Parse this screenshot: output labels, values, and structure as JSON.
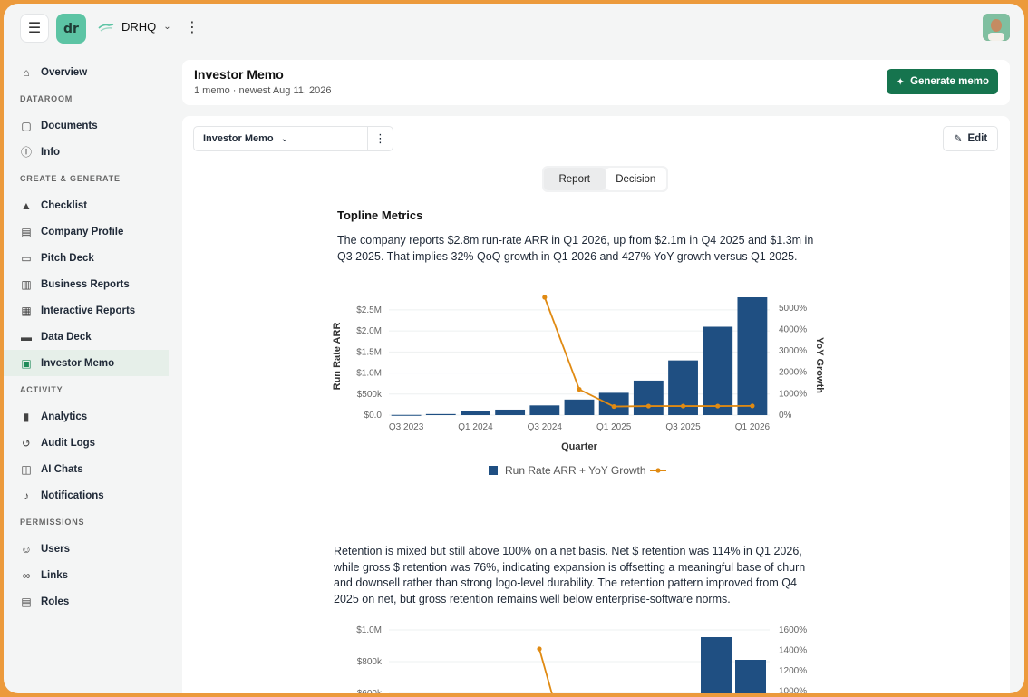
{
  "topbar": {
    "menu_icon": "hamburger-icon",
    "logo_text": "dr",
    "workspace_name": "DRHQ"
  },
  "sidebar": {
    "overview": "Overview",
    "sections": [
      {
        "title": "DATAROOM",
        "items": [
          {
            "label": "Documents",
            "icon": "document-icon"
          },
          {
            "label": "Info",
            "icon": "info-icon"
          }
        ]
      },
      {
        "title": "CREATE & GENERATE",
        "items": [
          {
            "label": "Checklist",
            "icon": "checklist-icon"
          },
          {
            "label": "Company Profile",
            "icon": "company-icon"
          },
          {
            "label": "Pitch Deck",
            "icon": "deck-icon"
          },
          {
            "label": "Business Reports",
            "icon": "report-icon"
          },
          {
            "label": "Interactive Reports",
            "icon": "table-icon"
          },
          {
            "label": "Data Deck",
            "icon": "data-icon"
          },
          {
            "label": "Investor Memo",
            "icon": "memo-icon"
          }
        ]
      },
      {
        "title": "ACTIVITY",
        "items": [
          {
            "label": "Analytics",
            "icon": "chart-icon"
          },
          {
            "label": "Audit Logs",
            "icon": "history-icon"
          },
          {
            "label": "AI Chats",
            "icon": "chat-icon"
          },
          {
            "label": "Notifications",
            "icon": "bell-icon"
          }
        ]
      },
      {
        "title": "PERMISSIONS",
        "items": [
          {
            "label": "Users",
            "icon": "users-icon"
          },
          {
            "label": "Links",
            "icon": "link-icon"
          },
          {
            "label": "Roles",
            "icon": "roles-icon"
          }
        ]
      }
    ]
  },
  "header": {
    "title": "Investor Memo",
    "subtitle": "1 memo · newest Aug 11, 2026",
    "generate_label": "Generate memo"
  },
  "toolbar": {
    "selected_doc": "Investor Memo",
    "edit_label": "Edit"
  },
  "tabs": {
    "report": "Report",
    "decision": "Decision"
  },
  "content": {
    "section_title": "Topline Metrics",
    "paragraph1": "The company reports $2.8m run-rate ARR in Q1 2026, up from $2.1m in Q4 2025 and $1.3m in Q3 2025. That implies 32% QoQ growth in Q1 2026 and 427% YoY growth versus Q1 2025.",
    "paragraph2": "Retention is mixed but still above 100% on a net basis. Net $ retention was 114% in Q1 2026, while gross $ retention was 76%, indicating expansion is offsetting a meaningful base of churn and downsell rather than strong logo-level durability. The retention pattern improved from Q4 2025 on net, but gross retention remains well below enterprise-software norms."
  },
  "chart_data": [
    {
      "type": "bar",
      "categories": [
        "Q3 2023",
        "Q4 2023",
        "Q1 2024",
        "Q2 2024",
        "Q3 2024",
        "Q4 2024",
        "Q1 2025",
        "Q2 2025",
        "Q3 2025",
        "Q4 2025",
        "Q1 2026"
      ],
      "x_tick_labels": [
        "Q3 2023",
        "Q1 2024",
        "Q3 2024",
        "Q1 2025",
        "Q3 2025",
        "Q1 2026"
      ],
      "series": [
        {
          "name": "Run Rate ARR",
          "type": "bar",
          "axis": "left",
          "color": "#1f4f82",
          "values": [
            5000,
            25000,
            100000,
            130000,
            230000,
            370000,
            530000,
            820000,
            1300000,
            2100000,
            2800000
          ]
        },
        {
          "name": "YoY Growth",
          "type": "line",
          "axis": "right",
          "color": "#e08a12",
          "values": [
            null,
            null,
            null,
            null,
            5500,
            1200,
            400,
            420,
            420,
            420,
            427
          ]
        }
      ],
      "legend_text": "Run Rate ARR + YoY Growth",
      "xlabel": "Quarter",
      "ylabel": "Run Rate ARR",
      "y2label": "YoY Growth",
      "ylim": [
        0,
        2800000
      ],
      "y2lim": [
        0,
        5500
      ],
      "y_ticks": [
        "$0.0",
        "$500k",
        "$1.0M",
        "$1.5M",
        "$2.0M",
        "$2.5M"
      ],
      "y_tick_values": [
        0,
        500000,
        1000000,
        1500000,
        2000000,
        2500000
      ],
      "y2_ticks": [
        "0%",
        "1000%",
        "2000%",
        "3000%",
        "4000%",
        "5000%"
      ],
      "y2_tick_values": [
        0,
        1000,
        2000,
        3000,
        4000,
        5000
      ],
      "grid": true,
      "legend_position": "bottom"
    },
    {
      "type": "bar",
      "partial": true,
      "y_ticks": [
        "$600k",
        "$800k",
        "$1.0M"
      ],
      "y_tick_values": [
        600000,
        800000,
        1000000
      ],
      "y2_ticks": [
        "1000%",
        "1200%",
        "1400%",
        "1600%"
      ],
      "y2_tick_values": [
        1000,
        1200,
        1400,
        1600
      ],
      "ylim": [
        500000,
        1050000
      ],
      "y2lim": [
        900000,
        1650
      ],
      "series": [
        {
          "name": "",
          "type": "bar",
          "axis": "left",
          "color": "#1f4f82",
          "values": [
            1000000,
            750000
          ]
        },
        {
          "name": "",
          "type": "line",
          "axis": "right",
          "color": "#e08a12",
          "values": [
            1400,
            900
          ]
        }
      ],
      "grid": true
    }
  ]
}
